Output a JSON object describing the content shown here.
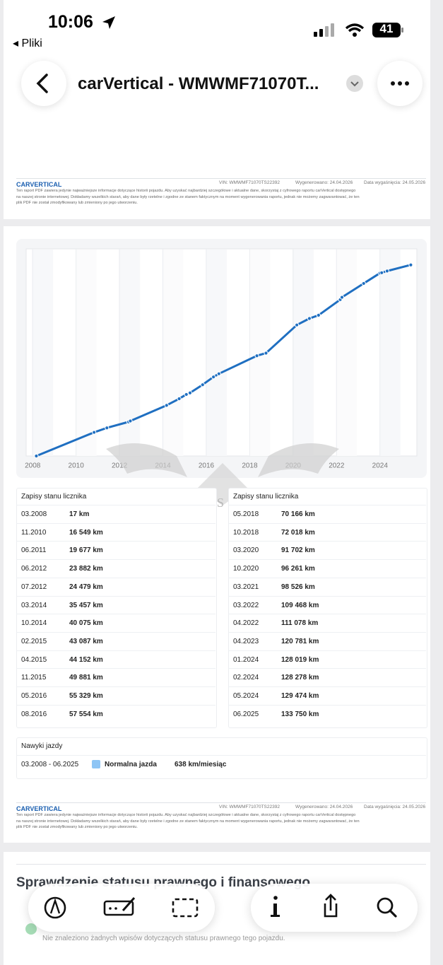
{
  "status_bar": {
    "time": "10:06",
    "back_app": "Pliki",
    "battery": "41"
  },
  "nav": {
    "title": "carVertical - WMWMF71070T..."
  },
  "footer": {
    "logo": "CARVERTICAL",
    "vin": "VIN:  WMWMF71070TS22392",
    "generated": "Wygenerowano: 24.04.2026",
    "expires": "Data wygaśnięcia: 24.05.2026",
    "disclaimer": [
      "Ten raport PDF zawiera jedynie najważniejsze informacje dotyczące historii pojazdu. Aby uzyskać najbardziej szczegółowe i aktualne dane, skorzystaj z cyfrowego raportu carVertical dostępnego",
      "na naszej stronie internetowej. Dokładamy wszelkich starań, aby dane były rzetelne i zgodne ze stanem faktycznym na moment wygenerowania raportu, jednak nie możemy zagwarantować, że ten",
      "plik PDF nie został zmodyfikowany lub zmieniony po jego utworzeniu."
    ]
  },
  "chart_data": {
    "type": "line",
    "color": "#1f6fc1",
    "grid": true,
    "x": [
      2008.17,
      2010.83,
      2011.42,
      2012.42,
      2012.5,
      2014.17,
      2014.75,
      2015.08,
      2015.25,
      2015.83,
      2016.33,
      2016.58,
      2018.33,
      2018.75,
      2020.17,
      2020.75,
      2021.17,
      2022.17,
      2022.25,
      2023.25,
      2024.0,
      2024.08,
      2024.33,
      2025.42
    ],
    "values": [
      17,
      16549,
      19677,
      23882,
      24479,
      35457,
      40075,
      43087,
      44152,
      49881,
      55329,
      57554,
      70166,
      72018,
      91702,
      96261,
      98526,
      109468,
      111078,
      120781,
      128019,
      128278,
      129474,
      133750
    ],
    "xlim": [
      2007.7,
      2025.7
    ],
    "ylim": [
      0,
      145000
    ],
    "xticks": [
      2008,
      2010,
      2012,
      2014,
      2016,
      2018,
      2020,
      2022,
      2024
    ]
  },
  "watermark": "CARSBAT",
  "odometer": {
    "left": {
      "title": "Zapisy stanu licznika",
      "rows": [
        [
          "03.2008",
          "17 km"
        ],
        [
          "11.2010",
          "16 549 km"
        ],
        [
          "06.2011",
          "19 677 km"
        ],
        [
          "06.2012",
          "23 882 km"
        ],
        [
          "07.2012",
          "24 479 km"
        ],
        [
          "03.2014",
          "35 457 km"
        ],
        [
          "10.2014",
          "40 075 km"
        ],
        [
          "02.2015",
          "43 087 km"
        ],
        [
          "04.2015",
          "44 152 km"
        ],
        [
          "11.2015",
          "49 881 km"
        ],
        [
          "05.2016",
          "55 329 km"
        ],
        [
          "08.2016",
          "57 554 km"
        ]
      ]
    },
    "right": {
      "title": "Zapisy stanu licznika",
      "rows": [
        [
          "05.2018",
          "70 166 km"
        ],
        [
          "10.2018",
          "72 018 km"
        ],
        [
          "03.2020",
          "91 702 km"
        ],
        [
          "10.2020",
          "96 261 km"
        ],
        [
          "03.2021",
          "98 526 km"
        ],
        [
          "03.2022",
          "109 468 km"
        ],
        [
          "04.2022",
          "111 078 km"
        ],
        [
          "04.2023",
          "120 781 km"
        ],
        [
          "01.2024",
          "128 019 km"
        ],
        [
          "02.2024",
          "128 278 km"
        ],
        [
          "05.2024",
          "129 474 km"
        ],
        [
          "06.2025",
          "133 750 km"
        ]
      ]
    }
  },
  "habits": {
    "title": "Nawyki jazdy",
    "period": "03.2008 - 06.2025",
    "label": "Normalna jazda",
    "value": "638 km/miesiąc"
  },
  "legal": {
    "title": "Sprawdzenie statusu prawnego i finansowego",
    "message": "Nie znaleziono żadnych wpisów dotyczących statusu prawnego tego pojazdu."
  }
}
